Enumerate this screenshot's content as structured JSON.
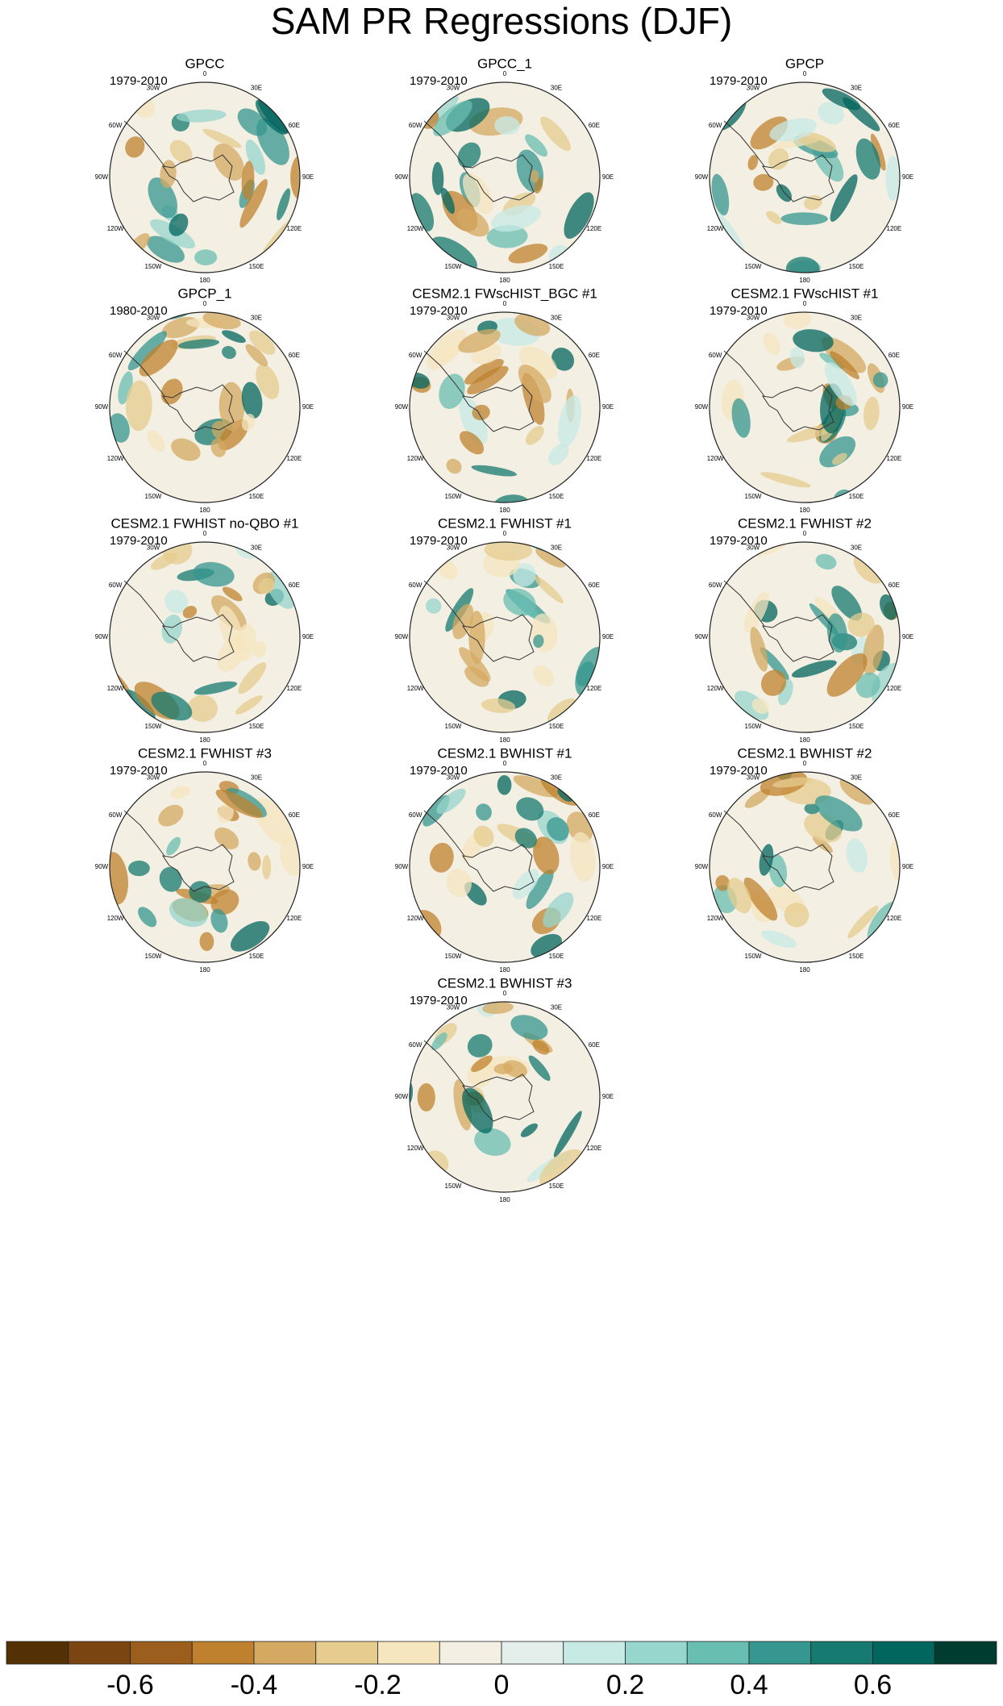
{
  "title": "SAM PR Regressions (DJF)",
  "lon_labels": [
    "0",
    "30E",
    "60E",
    "90E",
    "120E",
    "150E",
    "180",
    "150W",
    "120W",
    "90W",
    "60W",
    "30W"
  ],
  "panels": [
    {
      "title": "GPCC",
      "period": "1979-2010"
    },
    {
      "title": "GPCC_1",
      "period": "1979-2010"
    },
    {
      "title": "GPCP",
      "period": "1979-2010"
    },
    {
      "title": "GPCP_1",
      "period": "1980-2010"
    },
    {
      "title": "CESM2.1 FWscHIST_BGC #1",
      "period": "1979-2010"
    },
    {
      "title": "CESM2.1 FWscHIST #1",
      "period": "1979-2010"
    },
    {
      "title": "CESM2.1 FWHIST no-QBO #1",
      "period": "1979-2010"
    },
    {
      "title": "CESM2.1 FWHIST #1",
      "period": "1979-2010"
    },
    {
      "title": "CESM2.1 FWHIST #2",
      "period": "1979-2010"
    },
    {
      "title": "CESM2.1 FWHIST #3",
      "period": "1979-2010"
    },
    {
      "title": "CESM2.1 BWHIST #1",
      "period": "1979-2010"
    },
    {
      "title": "CESM2.1 BWHIST #2",
      "period": "1979-2010"
    },
    {
      "title": "CESM2.1 BWHIST #3",
      "period": "1979-2010"
    }
  ],
  "colorbar": {
    "levels": [
      -0.7,
      -0.6,
      -0.5,
      -0.4,
      -0.3,
      -0.2,
      -0.1,
      0,
      0.1,
      0.2,
      0.3,
      0.4,
      0.5,
      0.6,
      0.7
    ],
    "colors": [
      "#543005",
      "#7a4510",
      "#9c5e1c",
      "#bf812d",
      "#d4a961",
      "#e6cc8f",
      "#f5e6bf",
      "#f4efe3",
      "#e4efec",
      "#c7eae5",
      "#97d6cc",
      "#69beb2",
      "#35978f",
      "#167a70",
      "#01665e",
      "#003c30"
    ],
    "ticks": [
      -0.6,
      -0.4,
      -0.2,
      0,
      0.2,
      0.4,
      0.6
    ]
  }
}
